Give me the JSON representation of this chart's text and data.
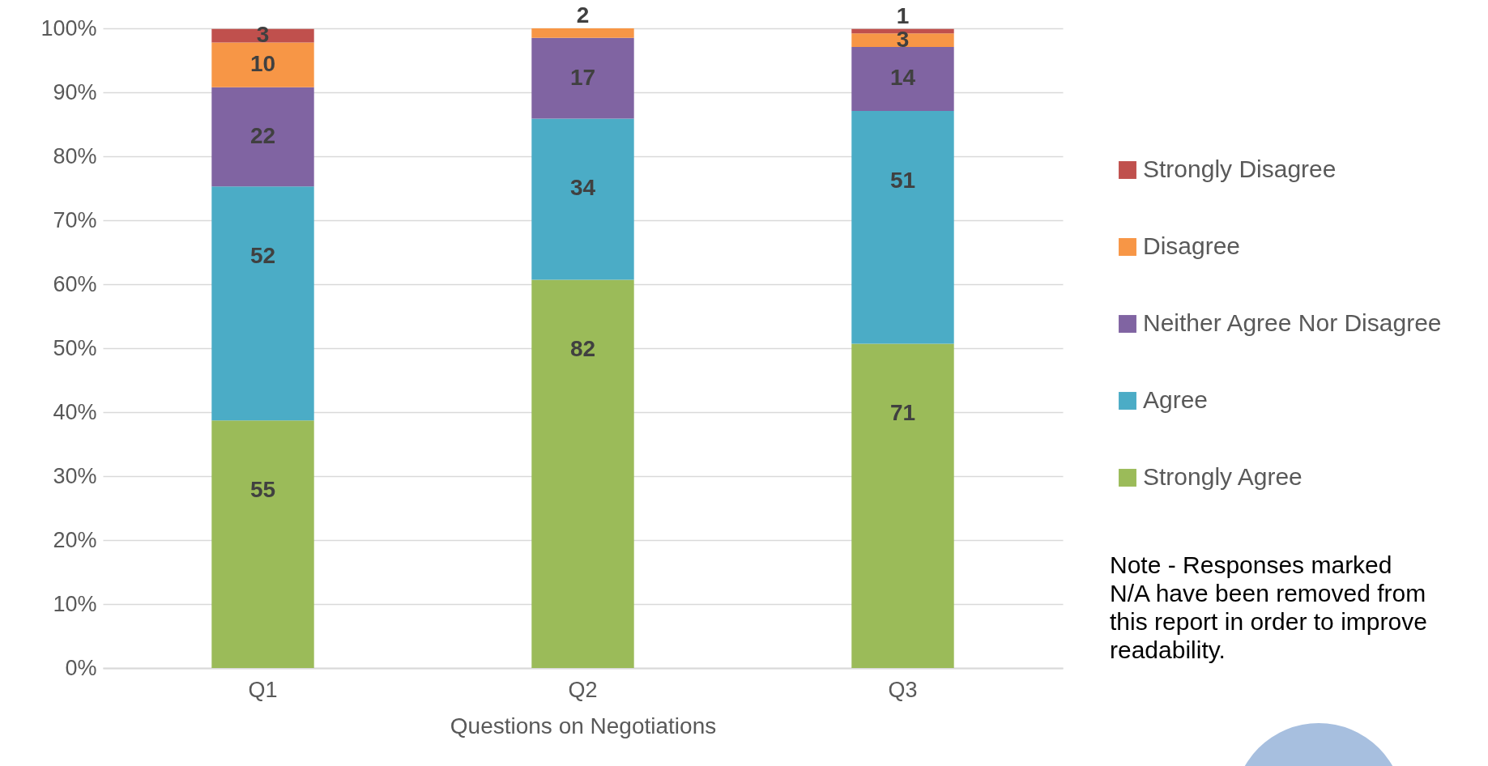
{
  "chart_data": {
    "type": "bar",
    "stacked": true,
    "xlabel": "Questions on Negotiations",
    "categories": [
      "Q1",
      "Q2",
      "Q3"
    ],
    "series": [
      {
        "name": "Strongly Agree",
        "color": "#9bbb59",
        "values": [
          38.7,
          60.7,
          50.7
        ]
      },
      {
        "name": "Agree",
        "color": "#4bacc6",
        "values": [
          36.6,
          25.2,
          36.4
        ]
      },
      {
        "name": "Neither Agree Nor Disagree",
        "color": "#8064a2",
        "values": [
          15.5,
          12.6,
          10.0
        ]
      },
      {
        "name": "Disagree",
        "color": "#f79646",
        "values": [
          7.0,
          1.5,
          2.1
        ]
      },
      {
        "name": "Strongly Disagree",
        "color": "#c0504d",
        "values": [
          2.1,
          null,
          0.7
        ]
      }
    ],
    "ylim": [
      0,
      100
    ],
    "yticks": [
      {
        "value": 0,
        "label": "0%"
      },
      {
        "value": 10,
        "label": "10%"
      },
      {
        "value": 20,
        "label": "20%"
      },
      {
        "value": 30,
        "label": "30%"
      },
      {
        "value": 40,
        "label": "40%"
      },
      {
        "value": 50,
        "label": "50%"
      },
      {
        "value": 60,
        "label": "60%"
      },
      {
        "value": 70,
        "label": "70%"
      },
      {
        "value": 80,
        "label": "80%"
      },
      {
        "value": 90,
        "label": "90%"
      },
      {
        "value": 100,
        "label": "100%"
      }
    ],
    "grid": "y",
    "legend": "right",
    "annotations": [
      {
        "text": "55",
        "x": "Q1",
        "y": 38.7
      },
      {
        "text": "52",
        "x": "Q1",
        "y": 75.3
      },
      {
        "text": "22",
        "x": "Q1",
        "y": 90.8
      },
      {
        "text": "10",
        "x": "Q1",
        "y": 97.8
      },
      {
        "text": "3",
        "x": "Q1",
        "y": 99.9
      },
      {
        "text": "82",
        "x": "Q2",
        "y": 60.7
      },
      {
        "text": "34",
        "x": "Q2",
        "y": 85.9
      },
      {
        "text": "17",
        "x": "Q2",
        "y": 98.5
      },
      {
        "text": "2",
        "x": "Q2",
        "y": 100.0
      },
      {
        "text": "71",
        "x": "Q3",
        "y": 50.7
      },
      {
        "text": "51",
        "x": "Q3",
        "y": 87.1
      },
      {
        "text": "14",
        "x": "Q3",
        "y": 97.1
      },
      {
        "text": "3",
        "x": "Q3",
        "y": 99.2
      },
      {
        "text": "1",
        "x": "Q3",
        "y": 99.9
      },
      "Note - Responses marked N/A have been removed from this report in order to improve readability."
    ]
  }
}
